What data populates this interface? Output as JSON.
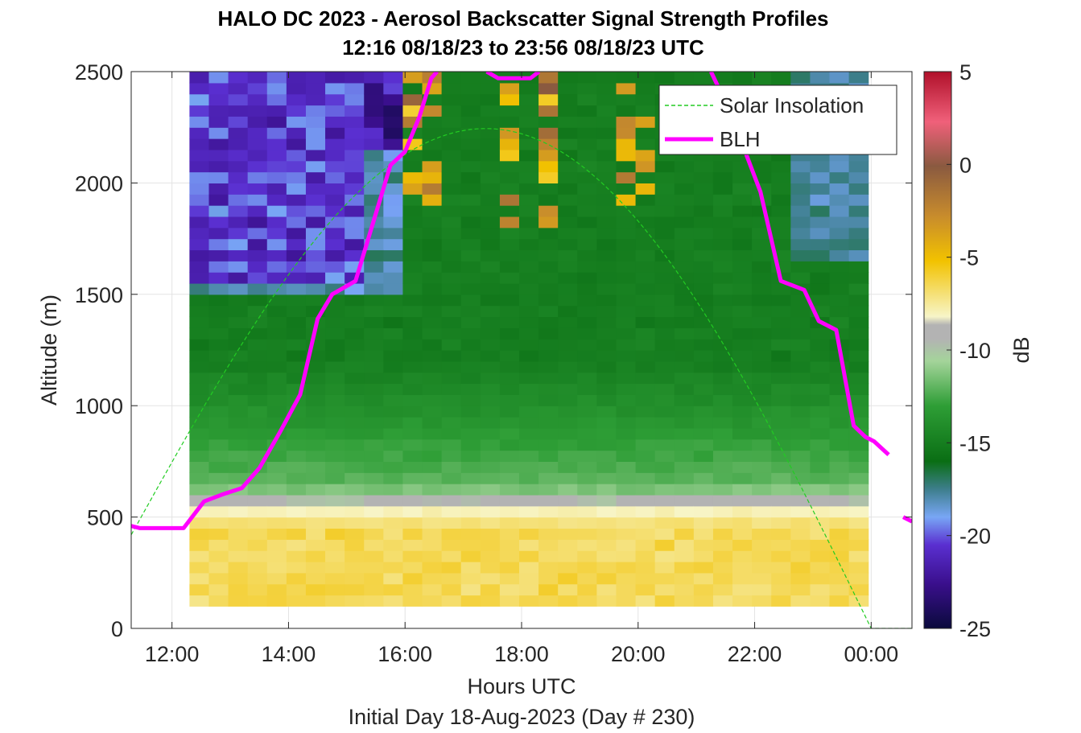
{
  "chart_data": {
    "type": "heatmap",
    "title_lines": [
      "HALO DC 2023 - Aerosol Backscatter Signal Strength Profiles",
      "12:16 08/18/23 to 23:56 08/18/23  UTC"
    ],
    "xlabel": "Hours UTC",
    "xlabel2": "Initial Day 18-Aug-2023 (Day # 230)",
    "ylabel": "Altitude (m)",
    "colorbar_label": "dB",
    "xlim_hours": [
      11.3,
      24.7
    ],
    "ylim": [
      0,
      2500
    ],
    "x_ticks": [
      {
        "value": 12,
        "label": "12:00"
      },
      {
        "value": 14,
        "label": "14:00"
      },
      {
        "value": 16,
        "label": "16:00"
      },
      {
        "value": 18,
        "label": "18:00"
      },
      {
        "value": 20,
        "label": "20:00"
      },
      {
        "value": 22,
        "label": "22:00"
      },
      {
        "value": 24,
        "label": "00:00"
      }
    ],
    "y_ticks": [
      {
        "value": 0,
        "label": "0"
      },
      {
        "value": 500,
        "label": "500"
      },
      {
        "value": 1000,
        "label": "1000"
      },
      {
        "value": 1500,
        "label": "1500"
      },
      {
        "value": 2000,
        "label": "2000"
      },
      {
        "value": 2500,
        "label": "2500"
      }
    ],
    "colorbar_ticks": [
      {
        "value": 5,
        "label": "5"
      },
      {
        "value": 0,
        "label": "0"
      },
      {
        "value": -5,
        "label": "-5"
      },
      {
        "value": -10,
        "label": "-10"
      },
      {
        "value": -15,
        "label": "-15"
      },
      {
        "value": -20,
        "label": "-20"
      },
      {
        "value": -25,
        "label": "-25"
      }
    ],
    "clim": [
      -25,
      5
    ],
    "grid": true,
    "legend_placement": "top-right",
    "series": [
      {
        "name": "Solar Insolation",
        "type": "line",
        "style": "dashed",
        "color": "#22cc22",
        "x": [
          11.3,
          24.0,
          24.7
        ],
        "peak_x": 17.15,
        "peak_y": 2240,
        "start_y": 420,
        "end_y": 0
      },
      {
        "name": "BLH",
        "type": "line",
        "color": "#ff00ff",
        "x": [
          11.3,
          11.45,
          12.2,
          12.55,
          12.85,
          13.2,
          13.5,
          13.85,
          14.2,
          14.5,
          14.75,
          15.15,
          15.45,
          15.75,
          16.0,
          16.25,
          16.45,
          16.55
        ],
        "y": [
          460,
          450,
          450,
          570,
          600,
          630,
          720,
          880,
          1050,
          1390,
          1500,
          1560,
          1820,
          2080,
          2140,
          2300,
          2470,
          2500
        ]
      },
      {
        "name": "BLH",
        "type": "line",
        "segment": "top",
        "color": "#ff00ff",
        "x": [
          17.4,
          17.6,
          18.15,
          18.3
        ],
        "y": [
          2500,
          2470,
          2470,
          2500
        ]
      },
      {
        "name": "BLH",
        "type": "line",
        "segment": "descending",
        "color": "#ff00ff",
        "x": [
          21.25,
          21.45,
          21.75,
          22.1,
          22.45,
          22.85,
          23.1,
          23.4,
          23.7,
          23.9,
          24.05,
          24.3
        ],
        "y": [
          2500,
          2390,
          2200,
          1960,
          1560,
          1520,
          1380,
          1340,
          910,
          860,
          840,
          780
        ]
      },
      {
        "name": "BLH",
        "type": "line",
        "segment": "end",
        "color": "#ff00ff",
        "x": [
          24.55,
          24.7
        ],
        "y": [
          500,
          480
        ]
      }
    ],
    "heatmap": {
      "x_start_hours": 12.3,
      "x_end_hours": 23.95,
      "n_columns": 35,
      "y_start_m": 100,
      "y_end_m": 2500,
      "n_rows": 48,
      "note": "Backscatter field in dB: about -7 near the surface, -12 near 600 m, -15 across the boundary layer, -20 aloft; cells are computed by the script."
    }
  }
}
